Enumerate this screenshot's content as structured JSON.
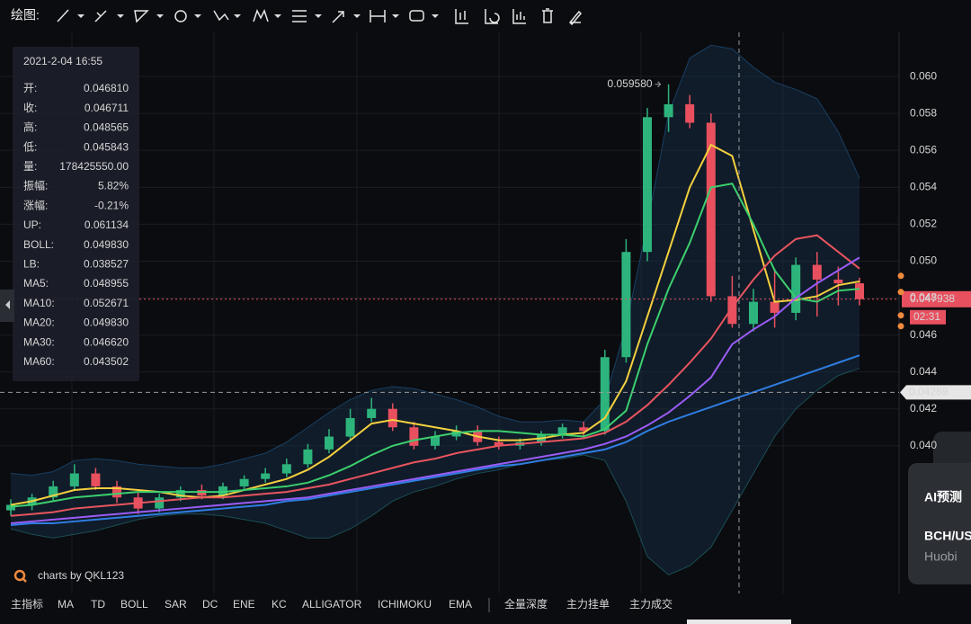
{
  "toolbar": {
    "label": "绘图:"
  },
  "info_panel": {
    "datetime": "2021-2-04 16:55",
    "rows": [
      {
        "label": "开:",
        "value": "0.046810"
      },
      {
        "label": "收:",
        "value": "0.046711"
      },
      {
        "label": "高:",
        "value": "0.048565"
      },
      {
        "label": "低:",
        "value": "0.045843"
      },
      {
        "label": "量:",
        "value": "178425550.00"
      },
      {
        "label": "振幅:",
        "value": "5.82%"
      },
      {
        "label": "涨幅:",
        "value": "-0.21%",
        "color": "#e8505f"
      }
    ]
  },
  "chart_data": {
    "type": "candlestick",
    "categories": [
      null,
      null,
      null,
      null,
      null,
      null,
      null,
      null,
      null,
      null,
      null,
      null,
      null,
      null,
      null,
      null,
      null,
      null,
      null,
      null,
      null,
      null,
      null,
      null,
      null,
      null,
      null,
      null,
      null,
      null,
      null,
      null,
      null,
      null,
      null,
      null,
      null,
      null,
      null,
      null,
      null
    ],
    "open": [
      0.0365,
      0.0368,
      0.0372,
      0.0378,
      0.0385,
      0.0378,
      0.0372,
      0.0366,
      0.0372,
      0.0376,
      0.0373,
      0.0378,
      0.0382,
      0.0385,
      0.039,
      0.0398,
      0.0405,
      0.0415,
      0.042,
      0.041,
      0.04,
      0.0405,
      0.0408,
      0.0402,
      0.04,
      0.0402,
      0.0406,
      0.041,
      0.0408,
      0.0448,
      0.0505,
      0.0578,
      0.0585,
      0.0575,
      0.0481,
      0.0466,
      0.0478,
      0.0472,
      0.0498,
      0.049,
      0.0488
    ],
    "high": [
      0.0371,
      0.0374,
      0.0381,
      0.039,
      0.0388,
      0.0381,
      0.0375,
      0.0374,
      0.0378,
      0.0379,
      0.038,
      0.0384,
      0.0388,
      0.0393,
      0.0401,
      0.0409,
      0.042,
      0.0426,
      0.0423,
      0.0413,
      0.0408,
      0.0411,
      0.0411,
      0.0405,
      0.0404,
      0.0408,
      0.0412,
      0.0413,
      0.0452,
      0.0512,
      0.0583,
      0.05958,
      0.059,
      0.058,
      0.0492,
      0.0485,
      0.0496,
      0.0502,
      0.0505,
      0.0497,
      0.0491
    ],
    "low": [
      0.0362,
      0.0365,
      0.037,
      0.0376,
      0.0376,
      0.0369,
      0.0363,
      0.0364,
      0.037,
      0.0371,
      0.0371,
      0.0376,
      0.038,
      0.0383,
      0.0388,
      0.0396,
      0.0403,
      0.0413,
      0.0408,
      0.0398,
      0.0398,
      0.0403,
      0.04,
      0.0398,
      0.0398,
      0.04,
      0.0404,
      0.0405,
      0.0406,
      0.0445,
      0.05,
      0.057,
      0.0572,
      0.0478,
      0.0464,
      0.0462,
      0.0464,
      0.0468,
      0.047,
      0.0476,
      0.0476
    ],
    "close": [
      0.0368,
      0.0372,
      0.0378,
      0.0385,
      0.0378,
      0.0372,
      0.0366,
      0.0372,
      0.0376,
      0.0373,
      0.0378,
      0.0382,
      0.0385,
      0.039,
      0.0398,
      0.0405,
      0.0415,
      0.042,
      0.041,
      0.04,
      0.0405,
      0.0408,
      0.0402,
      0.04,
      0.0402,
      0.0406,
      0.041,
      0.0408,
      0.0448,
      0.0505,
      0.0578,
      0.0585,
      0.0575,
      0.0481,
      0.0466,
      0.0478,
      0.0472,
      0.0498,
      0.049,
      0.0488,
      0.047938
    ],
    "up_color": "#2db47c",
    "down_color": "#e8505f",
    "series": [
      {
        "name": "UP:",
        "cursor_value": "0.061134",
        "color": "#2f8fe6",
        "role": "band-upper",
        "values": [
          0.0385,
          0.0384,
          0.0386,
          0.0392,
          0.0393,
          0.0392,
          0.039,
          0.0389,
          0.0388,
          0.0388,
          0.039,
          0.0393,
          0.0396,
          0.0402,
          0.041,
          0.0418,
          0.0425,
          0.043,
          0.0432,
          0.0431,
          0.0428,
          0.0425,
          0.0421,
          0.0416,
          0.0413,
          0.0413,
          0.0414,
          0.0413,
          0.0425,
          0.0465,
          0.052,
          0.058,
          0.061,
          0.0617,
          0.0615,
          0.0605,
          0.0597,
          0.0593,
          0.0588,
          0.057,
          0.0545
        ]
      },
      {
        "name": "BOLL:",
        "cursor_value": "0.049830",
        "color": "#35b9b9",
        "role": "band-middle",
        "values": [
          0.0362,
          0.0363,
          0.0364,
          0.0366,
          0.0367,
          0.0368,
          0.0369,
          0.037,
          0.0371,
          0.0372,
          0.0372,
          0.0373,
          0.0374,
          0.0375,
          0.0377,
          0.0379,
          0.0382,
          0.0385,
          0.0388,
          0.0391,
          0.0393,
          0.0396,
          0.0398,
          0.04,
          0.0401,
          0.0402,
          0.0403,
          0.0404,
          0.0407,
          0.0413,
          0.0422,
          0.0433,
          0.0445,
          0.0458,
          0.0475,
          0.049,
          0.0503,
          0.0512,
          0.0514,
          0.0505,
          0.0496
        ]
      },
      {
        "name": "LB:",
        "cursor_value": "0.038527",
        "color": "#35b9b9",
        "role": "band-lower",
        "values": [
          0.0355,
          0.0352,
          0.035,
          0.0352,
          0.0354,
          0.0357,
          0.036,
          0.0362,
          0.0363,
          0.0363,
          0.0362,
          0.036,
          0.0358,
          0.0354,
          0.035,
          0.035,
          0.0355,
          0.0362,
          0.037,
          0.0375,
          0.0378,
          0.0382,
          0.0385,
          0.0387,
          0.039,
          0.0392,
          0.0393,
          0.0395,
          0.0392,
          0.037,
          0.034,
          0.033,
          0.0335,
          0.0345,
          0.0365,
          0.0385,
          0.0405,
          0.042,
          0.043,
          0.0438,
          0.0442
        ]
      },
      {
        "name": "MA5:",
        "cursor_value": "0.048955",
        "color": "#f4d03f",
        "values": [
          0.0368,
          0.037,
          0.0373,
          0.0376,
          0.0377,
          0.0377,
          0.0376,
          0.0375,
          0.0373,
          0.0372,
          0.0373,
          0.0376,
          0.0379,
          0.0382,
          0.0387,
          0.0394,
          0.0403,
          0.0412,
          0.0414,
          0.0412,
          0.041,
          0.0408,
          0.0405,
          0.0403,
          0.0403,
          0.0404,
          0.0406,
          0.0407,
          0.0415,
          0.0435,
          0.047,
          0.0505,
          0.054,
          0.0563,
          0.0557,
          0.0517,
          0.0478,
          0.0479,
          0.0481,
          0.0487,
          0.0489
        ]
      },
      {
        "name": "MA10:",
        "cursor_value": "0.052671",
        "color": "#3ccf6e",
        "values": [
          0.0367,
          0.0368,
          0.037,
          0.0372,
          0.0373,
          0.0374,
          0.0375,
          0.0375,
          0.0375,
          0.0375,
          0.0375,
          0.0376,
          0.0377,
          0.0378,
          0.038,
          0.0384,
          0.0389,
          0.0395,
          0.04,
          0.0403,
          0.0405,
          0.0407,
          0.0408,
          0.0408,
          0.0407,
          0.0406,
          0.0406,
          0.0405,
          0.0409,
          0.0419,
          0.0455,
          0.0485,
          0.051,
          0.054,
          0.0542,
          0.052,
          0.0495,
          0.048,
          0.0478,
          0.0484,
          0.0485
        ]
      },
      {
        "name": "MA20:",
        "cursor_value": "0.049830",
        "color": "#e8555f",
        "values": [
          0.0362,
          0.0363,
          0.0364,
          0.0366,
          0.0367,
          0.0368,
          0.0369,
          0.037,
          0.0371,
          0.0372,
          0.0372,
          0.0373,
          0.0374,
          0.0375,
          0.0377,
          0.0379,
          0.0382,
          0.0385,
          0.0388,
          0.0391,
          0.0393,
          0.0396,
          0.0398,
          0.04,
          0.0401,
          0.0402,
          0.0403,
          0.0404,
          0.0407,
          0.0413,
          0.0422,
          0.0433,
          0.0445,
          0.0458,
          0.0475,
          0.049,
          0.0503,
          0.0512,
          0.0514,
          0.0505,
          0.0496
        ]
      },
      {
        "name": "MA30:",
        "cursor_value": "0.046620",
        "color": "#9b5cf6",
        "values": [
          0.0358,
          0.0359,
          0.036,
          0.0361,
          0.0362,
          0.0363,
          0.0364,
          0.0365,
          0.0366,
          0.0367,
          0.0368,
          0.0369,
          0.037,
          0.0371,
          0.0372,
          0.0374,
          0.0376,
          0.0378,
          0.038,
          0.0382,
          0.0384,
          0.0386,
          0.0388,
          0.039,
          0.0392,
          0.0394,
          0.0396,
          0.0398,
          0.0401,
          0.0405,
          0.0411,
          0.0418,
          0.0427,
          0.0437,
          0.0455,
          0.0463,
          0.047,
          0.048,
          0.0488,
          0.0495,
          0.0502
        ]
      },
      {
        "name": "MA60:",
        "cursor_value": "0.043502",
        "color": "#2f7de1",
        "values": [
          0.0357,
          0.0358,
          0.0358,
          0.0359,
          0.036,
          0.0361,
          0.0362,
          0.0363,
          0.0364,
          0.0365,
          0.0366,
          0.0367,
          0.0368,
          0.037,
          0.0371,
          0.0373,
          0.0375,
          0.0377,
          0.0379,
          0.0381,
          0.0383,
          0.0385,
          0.0387,
          0.0389,
          0.039,
          0.0392,
          0.0394,
          0.0396,
          0.0398,
          0.0402,
          0.0408,
          0.0413,
          0.0417,
          0.0421,
          0.0425,
          0.0429,
          0.0433,
          0.0437,
          0.0441,
          0.0445,
          0.0449
        ]
      }
    ],
    "ylim": [
      0.032,
      0.0622
    ],
    "yticks": [
      {
        "value": 0.04,
        "label": "0.040"
      },
      {
        "value": 0.042,
        "label": "0.042"
      },
      {
        "value": 0.044,
        "label": "0.044"
      },
      {
        "value": 0.046,
        "label": "0.046"
      },
      {
        "value": 0.048,
        "label": "0.048"
      },
      {
        "value": 0.05,
        "label": "0.050"
      },
      {
        "value": 0.052,
        "label": "0.052"
      },
      {
        "value": 0.054,
        "label": "0.054"
      },
      {
        "value": 0.056,
        "label": "0.056"
      },
      {
        "value": 0.058,
        "label": "0.058"
      },
      {
        "value": 0.06,
        "label": "0.060"
      }
    ],
    "grid": true,
    "last_price": 0.047938,
    "countdown": "02:31",
    "crosshair_price": 0.04289,
    "max_annotation": {
      "value": 0.05958,
      "label": "0.059580"
    },
    "watermark": "charts by QKL123"
  },
  "bottom_bar": {
    "label": "主指标",
    "indicators": [
      {
        "label": "MA",
        "active": true
      },
      {
        "label": "TD",
        "active": false
      },
      {
        "label": "BOLL",
        "active": true
      },
      {
        "label": "SAR",
        "active": false
      },
      {
        "label": "DC",
        "active": false
      },
      {
        "label": "ENE",
        "active": false
      },
      {
        "label": "KC",
        "active": false
      },
      {
        "label": "ALLIGATOR",
        "active": false
      },
      {
        "label": "ICHIMOKU",
        "active": false
      },
      {
        "label": "EMA",
        "active": false
      }
    ],
    "tabs": [
      {
        "label": "全量深度",
        "active": true
      },
      {
        "label": "主力挂单",
        "active": false
      },
      {
        "label": "主力成交",
        "active": false
      }
    ]
  },
  "side_panel": {
    "title": "AI预测",
    "pair": "BCH/US",
    "exchange": "Huobi"
  }
}
